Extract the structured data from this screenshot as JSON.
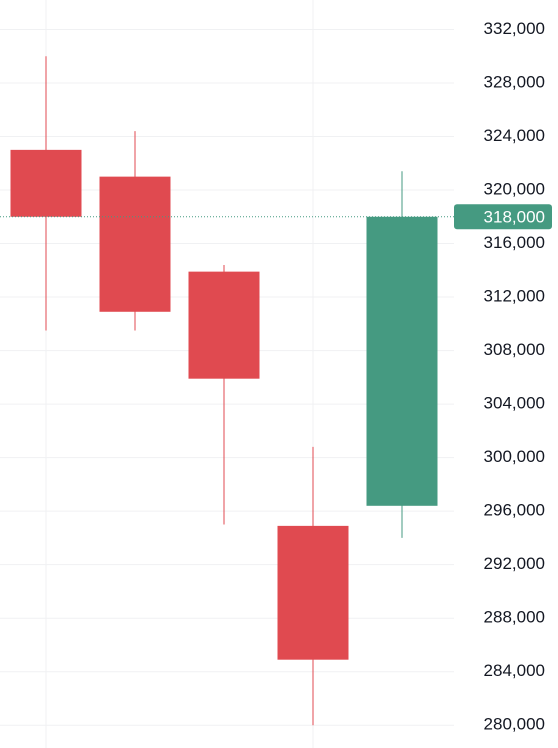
{
  "chart_data": {
    "type": "candlestick",
    "categories": [
      null,
      null,
      null,
      null,
      null
    ],
    "open": [
      323000,
      321000,
      313900,
      294900,
      296400
    ],
    "high": [
      330000,
      324400,
      314400,
      300800,
      321400
    ],
    "low": [
      309500,
      309500,
      295000,
      280000,
      294000
    ],
    "close": [
      318000,
      310900,
      305900,
      284900,
      318000
    ],
    "up_color": "#459a81",
    "down_color": "#e04a50",
    "ylim": [
      278300,
      334200
    ],
    "yticks": [
      {
        "value": 280000,
        "label": "280,000"
      },
      {
        "value": 284000,
        "label": "284,000"
      },
      {
        "value": 288000,
        "label": "288,000"
      },
      {
        "value": 292000,
        "label": "292,000"
      },
      {
        "value": 296000,
        "label": "296,000"
      },
      {
        "value": 300000,
        "label": "300,000"
      },
      {
        "value": 304000,
        "label": "304,000"
      },
      {
        "value": 308000,
        "label": "308,000"
      },
      {
        "value": 312000,
        "label": "312,000"
      },
      {
        "value": 316000,
        "label": "316,000"
      },
      {
        "value": 320000,
        "label": "320,000"
      },
      {
        "value": 324000,
        "label": "324,000"
      },
      {
        "value": 328000,
        "label": "328,000"
      },
      {
        "value": 332000,
        "label": "332,000"
      }
    ],
    "price_line": {
      "value": 318000,
      "label": "318,000"
    },
    "grid": true
  }
}
